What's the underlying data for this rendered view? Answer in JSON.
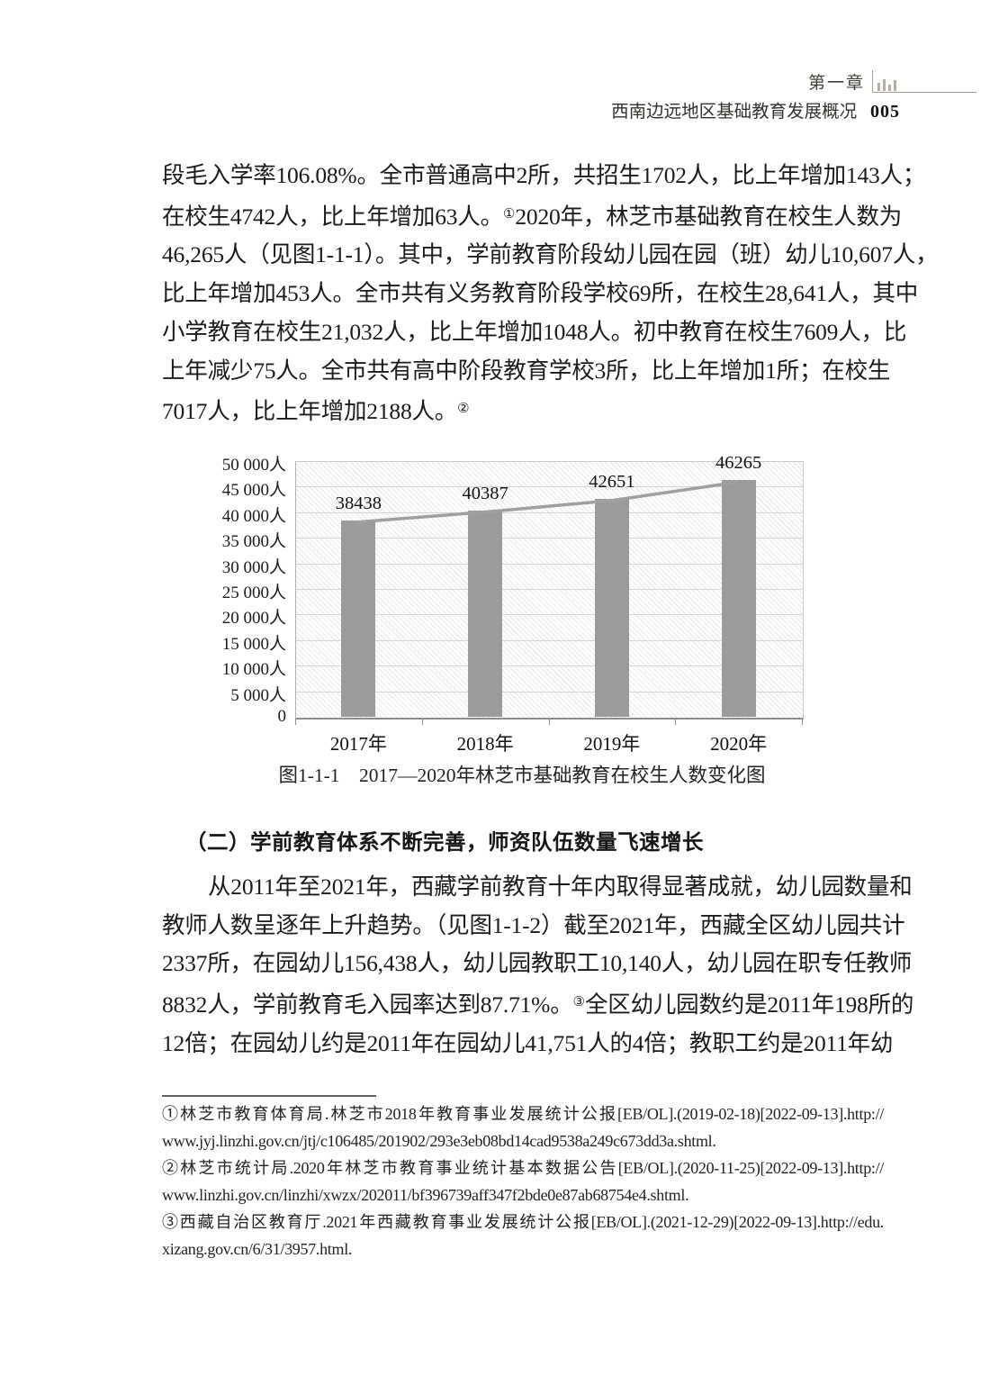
{
  "header": {
    "chapter": "第一章",
    "title": "西南边远地区基础教育发展概况",
    "page_number": "005"
  },
  "paragraph1": {
    "lines": [
      {
        "segs": [
          {
            "t": "段毛入学率106.08%。全市普通高中2所，共招生1702人，比上年增加143人；"
          }
        ]
      },
      {
        "segs": [
          {
            "t": "在校生4742人，比上年增加63人。"
          },
          {
            "t": "①",
            "sup": true
          },
          {
            "t": "2020年，林芝市基础教育在校生人数为"
          }
        ]
      },
      {
        "segs": [
          {
            "t": "46,265人（见图1-1-1）。其中，学前教育阶段幼儿园在园（班）幼儿10,607人，"
          }
        ]
      },
      {
        "segs": [
          {
            "t": "比上年增加453人。全市共有义务教育阶段学校69所，在校生28,641人，其中"
          }
        ]
      },
      {
        "segs": [
          {
            "t": "小学教育在校生21,032人，比上年增加1048人。初中教育在校生7609人，比"
          }
        ]
      },
      {
        "segs": [
          {
            "t": "上年减少75人。全市共有高中阶段教育学校3所，比上年增加1所；在校生"
          }
        ]
      },
      {
        "segs": [
          {
            "t": "7017人，比上年增加2188人。"
          },
          {
            "t": "②",
            "sup": true
          }
        ],
        "end": true
      }
    ]
  },
  "figure": {
    "caption": "图1-1-1　2017—2020年林芝市基础教育在校生人数变化图"
  },
  "chart_data": {
    "type": "bar",
    "categories": [
      "2017年",
      "2018年",
      "2019年",
      "2020年"
    ],
    "values": [
      38438,
      40387,
      42651,
      46265
    ],
    "data_labels": [
      "38438",
      "40387",
      "42651",
      "46265"
    ],
    "overlay_line": {
      "type": "line",
      "values": [
        38438,
        40387,
        42651,
        46265
      ]
    },
    "unit": "人",
    "title": "",
    "xlabel": "",
    "ylabel": "",
    "ylim": [
      0,
      50000
    ],
    "ytick_step": 5000,
    "ytick_labels": [
      "0",
      "5 000人",
      "10 000人",
      "15 000人",
      "20 000人",
      "25 000人",
      "30 000人",
      "35 000人",
      "40 000人",
      "45 000人",
      "50 000人"
    ],
    "grid": true,
    "legend": "none",
    "plot_background": "diagonal-hatch",
    "bar_color": "#9b9b9b",
    "line_color": "#a0a0a0"
  },
  "section2": {
    "heading": "（二）学前教育体系不断完善，师资队伍数量飞速增长",
    "lines": [
      {
        "segs": [
          {
            "t": "从2011年至2021年，西藏学前教育十年内取得显著成就，幼儿园数量和"
          }
        ],
        "indent": true
      },
      {
        "segs": [
          {
            "t": "教师人数呈逐年上升趋势。（见图1-1-2）截至2021年，西藏全区幼儿园共计"
          }
        ]
      },
      {
        "segs": [
          {
            "t": "2337所，在园幼儿156,438人，幼儿园教职工10,140人，幼儿园在职专任教师"
          }
        ]
      },
      {
        "segs": [
          {
            "t": "8832人，学前教育毛入园率达到87.71%。"
          },
          {
            "t": "③",
            "sup": true
          },
          {
            "t": "全区幼儿园数约是2011年198所的"
          }
        ]
      },
      {
        "segs": [
          {
            "t": "12倍；在园幼儿约是2011年在园幼儿41,751人的4倍；教职工约是2011年幼"
          }
        ]
      }
    ]
  },
  "footnotes": {
    "lines": [
      {
        "text": "①林芝市教育体育局.林芝市2018年教育事业发展统计公报[EB/OL].(2019-02-18)[2022-09-13].http://"
      },
      {
        "text": "www.jyj.linzhi.gov.cn/jtj/c106485/201902/293e3eb08bd14cad9538a249c673dd3a.shtml.",
        "cont": true
      },
      {
        "text": "②林芝市统计局.2020年林芝市教育事业统计基本数据公告[EB/OL].(2020-11-25)[2022-09-13].http://"
      },
      {
        "text": "www.linzhi.gov.cn/linzhi/xwzx/202011/bf396739aff347f2bde0e87ab68754e4.shtml.",
        "cont": true
      },
      {
        "text": "③西藏自治区教育厅.2021年西藏教育事业发展统计公报[EB/OL].(2021-12-29)[2022-09-13].http://edu.",
        "cont": false
      },
      {
        "text": "xizang.gov.cn/6/31/3957.html.",
        "cont": true
      }
    ]
  }
}
